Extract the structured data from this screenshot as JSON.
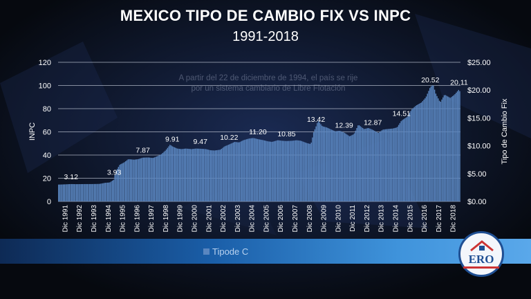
{
  "title": "MEXICO TIPO DE CAMBIO FIX VS INPC",
  "subtitle": "1991-2018",
  "annotation": [
    "A partir del 22 de diciembre de 1994, el país se rije",
    "por un sistema cambiario de Libre Flotación"
  ],
  "legend_partial": "Tipode C",
  "logo_text": "ERO",
  "colors": {
    "bars": "#5a86c0",
    "grid": "#c9cfdc",
    "text": "#ffffff",
    "band": "#2f7fd0"
  },
  "chart_data": {
    "type": "bar",
    "title": "MEXICO TIPO DE CAMBIO FIX VS INPC",
    "subtitle": "1991-2018",
    "ylabel": "INPC",
    "y2label": "Tipo de Cambio Fix",
    "ylim": [
      0,
      120
    ],
    "y2lim": [
      0,
      25
    ],
    "yticks": [
      "0",
      "20",
      "40",
      "60",
      "80",
      "100",
      "120"
    ],
    "y2ticks": [
      "$0.00",
      "$5.00",
      "$10.00",
      "$15.00",
      "$20.00",
      "$25.00"
    ],
    "x_range": [
      1991,
      2018
    ],
    "x_ticks": [
      "Dic 1991",
      "Dic 1992",
      "Dic 1993",
      "Dic 1994",
      "Dic 1995",
      "Dic 1996",
      "Dic 1997",
      "Dic 1998",
      "Dic 1999",
      "Dic 2000",
      "Dic 2001",
      "Dic 2002",
      "Dic 2003",
      "Dic 2004",
      "Dic 2005",
      "Dic 2006",
      "Dic 2007",
      "Dic 2008",
      "Dic 2009",
      "Dic 2010",
      "Dic 2011",
      "Dic 2012",
      "Dic 2013",
      "Dic 2014",
      "Dic 2015",
      "Dic 2016",
      "Dic 2017",
      "Dic 2018"
    ],
    "series": [
      {
        "points": [
          [
            1991.0,
            3.02
          ],
          [
            1991.3,
            3.05
          ],
          [
            1991.6,
            3.08
          ],
          [
            1991.9,
            3.12
          ],
          [
            1992.3,
            3.1
          ],
          [
            1992.6,
            3.11
          ],
          [
            1992.9,
            3.12
          ],
          [
            1993.3,
            3.12
          ],
          [
            1993.6,
            3.13
          ],
          [
            1993.9,
            3.15
          ],
          [
            1994.3,
            3.35
          ],
          [
            1994.6,
            3.4
          ],
          [
            1994.9,
            3.93
          ],
          [
            1995.0,
            5.3
          ],
          [
            1995.3,
            6.6
          ],
          [
            1995.6,
            7.0
          ],
          [
            1995.9,
            7.6
          ],
          [
            1996.3,
            7.5
          ],
          [
            1996.6,
            7.6
          ],
          [
            1996.9,
            7.87
          ],
          [
            1997.3,
            7.9
          ],
          [
            1997.6,
            7.8
          ],
          [
            1997.9,
            8.1
          ],
          [
            1998.2,
            8.5
          ],
          [
            1998.5,
            9.2
          ],
          [
            1998.8,
            10.2
          ],
          [
            1998.95,
            9.91
          ],
          [
            1999.3,
            9.5
          ],
          [
            1999.6,
            9.4
          ],
          [
            1999.9,
            9.5
          ],
          [
            2000.3,
            9.4
          ],
          [
            2000.6,
            9.5
          ],
          [
            2000.9,
            9.47
          ],
          [
            2001.3,
            9.4
          ],
          [
            2001.6,
            9.2
          ],
          [
            2001.9,
            9.15
          ],
          [
            2002.3,
            9.3
          ],
          [
            2002.6,
            9.9
          ],
          [
            2002.9,
            10.22
          ],
          [
            2003.3,
            10.7
          ],
          [
            2003.6,
            10.6
          ],
          [
            2003.9,
            11.0
          ],
          [
            2004.3,
            11.3
          ],
          [
            2004.6,
            11.4
          ],
          [
            2004.9,
            11.2
          ],
          [
            2005.3,
            11.0
          ],
          [
            2005.6,
            10.8
          ],
          [
            2005.9,
            10.7
          ],
          [
            2006.3,
            11.0
          ],
          [
            2006.6,
            10.9
          ],
          [
            2006.9,
            10.85
          ],
          [
            2007.3,
            10.9
          ],
          [
            2007.6,
            11.0
          ],
          [
            2007.9,
            10.9
          ],
          [
            2008.3,
            10.5
          ],
          [
            2008.6,
            10.3
          ],
          [
            2008.8,
            12.5
          ],
          [
            2008.95,
            13.42
          ],
          [
            2009.1,
            14.5
          ],
          [
            2009.4,
            13.5
          ],
          [
            2009.7,
            13.3
          ],
          [
            2009.9,
            13.05
          ],
          [
            2010.3,
            12.6
          ],
          [
            2010.6,
            12.7
          ],
          [
            2010.9,
            12.39
          ],
          [
            2011.3,
            11.7
          ],
          [
            2011.6,
            12.1
          ],
          [
            2011.9,
            13.8
          ],
          [
            2012.3,
            13.0
          ],
          [
            2012.6,
            13.2
          ],
          [
            2012.9,
            12.87
          ],
          [
            2013.3,
            12.3
          ],
          [
            2013.6,
            12.9
          ],
          [
            2013.9,
            13.0
          ],
          [
            2014.3,
            13.1
          ],
          [
            2014.6,
            13.3
          ],
          [
            2014.9,
            14.51
          ],
          [
            2015.3,
            15.2
          ],
          [
            2015.6,
            16.5
          ],
          [
            2015.9,
            17.2
          ],
          [
            2016.3,
            17.8
          ],
          [
            2016.6,
            18.7
          ],
          [
            2016.9,
            20.52
          ],
          [
            2017.1,
            21.0
          ],
          [
            2017.3,
            19.3
          ],
          [
            2017.6,
            17.8
          ],
          [
            2017.9,
            19.2
          ],
          [
            2018.3,
            18.6
          ],
          [
            2018.6,
            19.2
          ],
          [
            2018.9,
            20.11
          ],
          [
            2019.0,
            19.6
          ]
        ]
      }
    ],
    "data_labels": [
      {
        "x": 1991.9,
        "y": 3.12,
        "text": "3.12"
      },
      {
        "x": 1994.9,
        "y": 3.93,
        "text": "3.93"
      },
      {
        "x": 1996.9,
        "y": 7.87,
        "text": "7.87"
      },
      {
        "x": 1998.95,
        "y": 9.91,
        "text": "9.91"
      },
      {
        "x": 2000.9,
        "y": 9.47,
        "text": "9.47"
      },
      {
        "x": 2002.9,
        "y": 10.22,
        "text": "10.22"
      },
      {
        "x": 2004.9,
        "y": 11.2,
        "text": "11.20"
      },
      {
        "x": 2006.9,
        "y": 10.85,
        "text": "10.85"
      },
      {
        "x": 2008.95,
        "y": 13.42,
        "text": "13.42"
      },
      {
        "x": 2010.9,
        "y": 12.39,
        "text": "12.39"
      },
      {
        "x": 2012.9,
        "y": 12.87,
        "text": "12.87"
      },
      {
        "x": 2014.9,
        "y": 14.51,
        "text": "14.51"
      },
      {
        "x": 2016.9,
        "y": 20.52,
        "text": "20.52"
      },
      {
        "x": 2018.9,
        "y": 20.11,
        "text": "20.11"
      }
    ],
    "grid": true
  }
}
